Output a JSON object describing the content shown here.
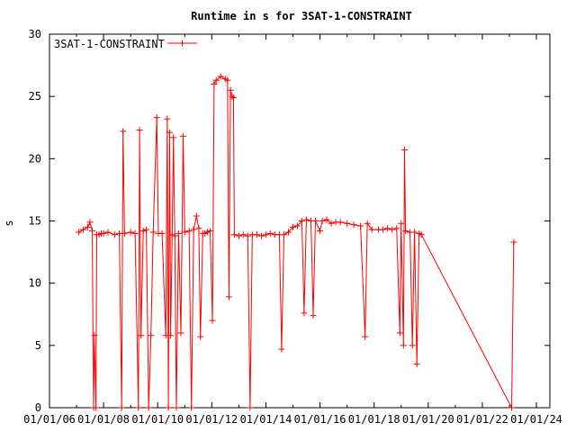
{
  "chart_data": {
    "type": "line",
    "title": "Runtime in s for 3SAT-1-CONSTRAINT",
    "xlabel": "",
    "ylabel": "s",
    "x_tick_labels": [
      "01/01/06",
      "01/01/08",
      "01/01/10",
      "01/01/12",
      "01/01/14",
      "01/01/16",
      "01/01/18",
      "01/01/20",
      "01/01/22",
      "01/01/24"
    ],
    "y_ticks": [
      0,
      5,
      10,
      15,
      20,
      25,
      30
    ],
    "ylim": [
      0,
      30
    ],
    "xlim": [
      "2006-01-01",
      "2024-07-01"
    ],
    "grid": false,
    "legend_position": "top-left",
    "series": [
      {
        "name": "3SAT-1-CONSTRAINT",
        "color": "#ff0000",
        "marker": "plus",
        "points": [
          [
            "2007-02-01",
            14.1
          ],
          [
            "2007-04-01",
            14.3
          ],
          [
            "2007-06-01",
            14.5
          ],
          [
            "2007-07-01",
            14.9
          ],
          [
            "2007-08-01",
            14.2
          ],
          [
            "2007-08-20",
            0.0
          ],
          [
            "2007-09-01",
            5.8
          ],
          [
            "2007-09-20",
            0.0
          ],
          [
            "2007-10-01",
            13.9
          ],
          [
            "2007-11-01",
            13.9
          ],
          [
            "2007-12-01",
            14.0
          ],
          [
            "2008-01-01",
            14.0
          ],
          [
            "2008-03-01",
            14.1
          ],
          [
            "2008-06-01",
            13.9
          ],
          [
            "2008-08-01",
            14.0
          ],
          [
            "2008-09-01",
            0.0
          ],
          [
            "2008-09-20",
            22.2
          ],
          [
            "2008-10-10",
            14.0
          ],
          [
            "2009-01-01",
            14.1
          ],
          [
            "2009-03-01",
            14.0
          ],
          [
            "2009-04-15",
            0.0
          ],
          [
            "2009-05-01",
            22.3
          ],
          [
            "2009-05-20",
            5.8
          ],
          [
            "2009-06-20",
            14.2
          ],
          [
            "2009-08-01",
            14.3
          ],
          [
            "2009-09-01",
            0.0
          ],
          [
            "2009-10-01",
            5.8
          ],
          [
            "2009-11-01",
            14.1
          ],
          [
            "2009-12-20",
            23.3
          ],
          [
            "2010-01-10",
            14.0
          ],
          [
            "2010-03-01",
            14.0
          ],
          [
            "2010-04-20",
            5.8
          ],
          [
            "2010-05-10",
            23.2
          ],
          [
            "2010-05-25",
            0.0
          ],
          [
            "2010-06-10",
            22.1
          ],
          [
            "2010-06-25",
            5.8
          ],
          [
            "2010-07-15",
            13.9
          ],
          [
            "2010-08-01",
            21.7
          ],
          [
            "2010-08-20",
            13.8
          ],
          [
            "2010-09-10",
            0.0
          ],
          [
            "2010-10-10",
            14.0
          ],
          [
            "2010-11-10",
            6.0
          ],
          [
            "2010-12-10",
            21.8
          ],
          [
            "2011-01-01",
            14.1
          ],
          [
            "2011-03-01",
            14.2
          ],
          [
            "2011-04-01",
            0.0
          ],
          [
            "2011-05-01",
            14.3
          ],
          [
            "2011-06-10",
            15.4
          ],
          [
            "2011-07-10",
            14.4
          ],
          [
            "2011-08-01",
            5.7
          ],
          [
            "2011-09-01",
            14.0
          ],
          [
            "2011-10-01",
            14.0
          ],
          [
            "2011-11-01",
            14.1
          ],
          [
            "2011-12-10",
            14.2
          ],
          [
            "2012-01-10",
            7.0
          ],
          [
            "2012-02-01",
            26.0
          ],
          [
            "2012-03-01",
            26.3
          ],
          [
            "2012-05-01",
            26.6
          ],
          [
            "2012-07-01",
            26.4
          ],
          [
            "2012-08-01",
            26.3
          ],
          [
            "2012-08-20",
            8.9
          ],
          [
            "2012-09-10",
            25.5
          ],
          [
            "2012-10-01",
            25.0
          ],
          [
            "2012-10-20",
            24.9
          ],
          [
            "2012-11-01",
            13.9
          ],
          [
            "2013-01-01",
            13.8
          ],
          [
            "2013-03-01",
            13.9
          ],
          [
            "2013-05-01",
            13.8
          ],
          [
            "2013-06-01",
            0.0
          ],
          [
            "2013-07-01",
            13.9
          ],
          [
            "2013-09-01",
            13.9
          ],
          [
            "2013-11-01",
            13.8
          ],
          [
            "2014-01-01",
            13.9
          ],
          [
            "2014-03-01",
            14.0
          ],
          [
            "2014-05-01",
            13.9
          ],
          [
            "2014-07-01",
            13.9
          ],
          [
            "2014-08-01",
            4.7
          ],
          [
            "2014-09-01",
            13.9
          ],
          [
            "2014-11-01",
            14.1
          ],
          [
            "2015-01-01",
            14.5
          ],
          [
            "2015-03-01",
            14.6
          ],
          [
            "2015-05-01",
            15.0
          ],
          [
            "2015-06-01",
            7.6
          ],
          [
            "2015-07-01",
            15.1
          ],
          [
            "2015-09-01",
            15.0
          ],
          [
            "2015-10-01",
            7.4
          ],
          [
            "2015-11-01",
            15.0
          ],
          [
            "2016-01-01",
            14.2
          ],
          [
            "2016-02-01",
            15.0
          ],
          [
            "2016-04-01",
            15.1
          ],
          [
            "2016-06-01",
            14.8
          ],
          [
            "2016-08-01",
            14.9
          ],
          [
            "2016-10-01",
            14.9
          ],
          [
            "2017-01-01",
            14.8
          ],
          [
            "2017-04-01",
            14.7
          ],
          [
            "2017-07-01",
            14.6
          ],
          [
            "2017-09-01",
            5.7
          ],
          [
            "2017-10-01",
            14.8
          ],
          [
            "2017-12-01",
            14.3
          ],
          [
            "2018-03-01",
            14.3
          ],
          [
            "2018-05-01",
            14.3
          ],
          [
            "2018-07-01",
            14.4
          ],
          [
            "2018-09-01",
            14.3
          ],
          [
            "2018-11-01",
            14.4
          ],
          [
            "2018-12-15",
            6.0
          ],
          [
            "2019-01-01",
            14.8
          ],
          [
            "2019-02-01",
            5.0
          ],
          [
            "2019-02-15",
            20.7
          ],
          [
            "2019-03-01",
            14.2
          ],
          [
            "2019-05-01",
            14.1
          ],
          [
            "2019-06-01",
            5.0
          ],
          [
            "2019-07-01",
            14.1
          ],
          [
            "2019-08-01",
            3.5
          ],
          [
            "2019-09-01",
            14.0
          ],
          [
            "2019-10-01",
            13.9
          ],
          [
            "2023-02-01",
            0.0
          ],
          [
            "2023-03-01",
            13.3
          ]
        ]
      }
    ]
  }
}
